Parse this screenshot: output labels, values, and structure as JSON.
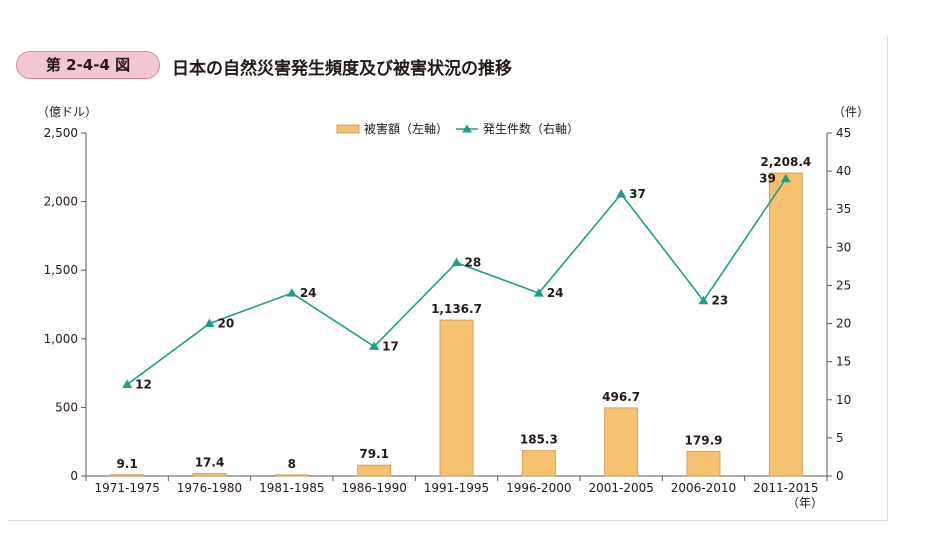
{
  "figure": {
    "number": "第 2-4-4 図",
    "title": "日本の自然災害発生頻度及び被害状況の推移"
  },
  "chart_data": {
    "type": "bar",
    "categories": [
      "1971-1975",
      "1976-1980",
      "1981-1985",
      "1986-1990",
      "1991-1995",
      "1996-2000",
      "2001-2005",
      "2006-2010",
      "2011-2015"
    ],
    "series": [
      {
        "name": "被害額（左軸）",
        "type": "bar",
        "axis": "left",
        "color": "#f7c26f",
        "values": [
          9.1,
          17.4,
          8,
          79.1,
          1136.7,
          185.3,
          496.7,
          179.9,
          2208.4
        ],
        "labels": [
          "9.1",
          "17.4",
          "8",
          "79.1",
          "1,136.7",
          "185.3",
          "496.7",
          "179.9",
          "2,208.4"
        ]
      },
      {
        "name": "発生件数（右軸）",
        "type": "line",
        "axis": "right",
        "color": "#1e9e8a",
        "values": [
          12,
          20,
          24,
          17,
          28,
          24,
          37,
          23,
          39
        ],
        "labels": [
          "12",
          "20",
          "24",
          "17",
          "28",
          "24",
          "37",
          "23",
          "39"
        ]
      }
    ],
    "left_axis": {
      "unit": "（億ドル）",
      "ylim": [
        0,
        2500
      ],
      "ticks": [
        "0",
        "500",
        "1,000",
        "1,500",
        "2,000",
        "2,500"
      ]
    },
    "right_axis": {
      "unit": "（件）",
      "ylim": [
        0,
        45
      ],
      "ticks": [
        "0",
        "5",
        "10",
        "15",
        "20",
        "25",
        "30",
        "35",
        "40",
        "45"
      ]
    },
    "x_unit": "（年）",
    "grid": false,
    "legend_position": "top-center"
  }
}
